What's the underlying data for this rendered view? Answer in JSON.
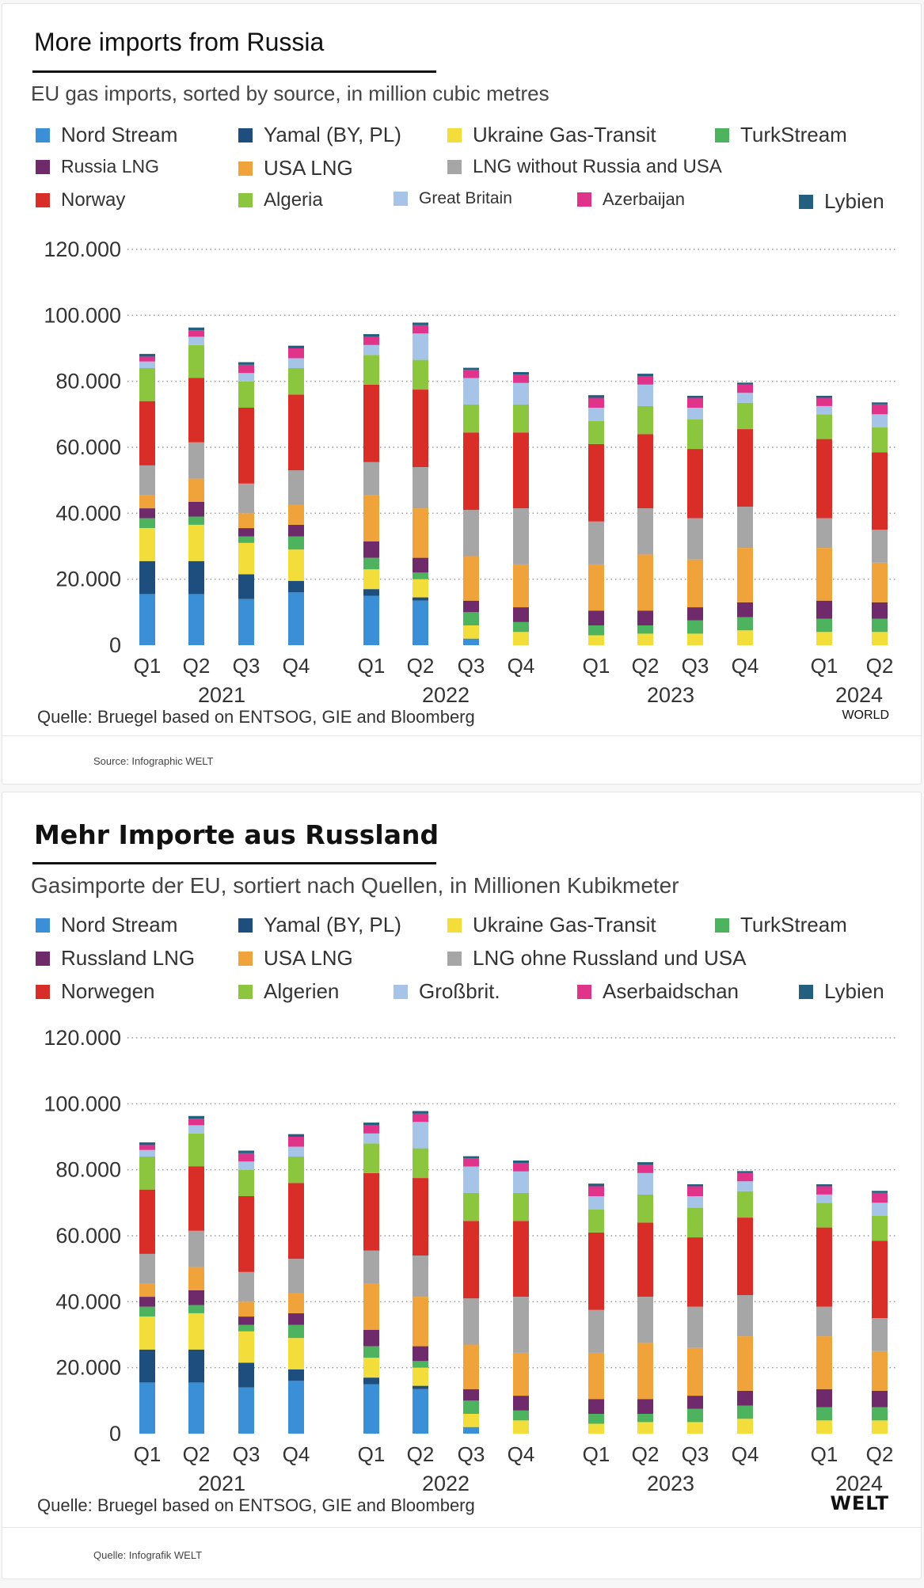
{
  "chart_data": {
    "type": "bar",
    "stacked": true,
    "ylim": [
      0,
      120000
    ],
    "yticks": [
      0,
      20000,
      40000,
      60000,
      80000,
      100000,
      120000
    ],
    "ytick_labels": [
      "0",
      "20.000",
      "40.000",
      "60.000",
      "80.000",
      "100.000",
      "120.000"
    ],
    "grid": "horizontal dotted",
    "categories": [
      "Q1 2021",
      "Q2 2021",
      "Q3 2021",
      "Q4 2021",
      "Q1 2022",
      "Q2 2022",
      "Q3 2022",
      "Q4 2022",
      "Q1 2023",
      "Q2 2023",
      "Q3 2023",
      "Q4 2023",
      "Q1 2024",
      "Q2 2024"
    ],
    "quarter_labels": [
      "Q1",
      "Q2",
      "Q3",
      "Q4",
      "Q1",
      "Q2",
      "Q3",
      "Q4",
      "Q1",
      "Q2",
      "Q3",
      "Q4",
      "Q1",
      "Q2"
    ],
    "years": [
      "2021",
      "2022",
      "2023",
      "2024"
    ],
    "series": [
      {
        "key": "nord_stream",
        "color": "#3a8fd6",
        "values": [
          15500,
          15500,
          14000,
          16000,
          15000,
          13500,
          2000,
          0,
          0,
          0,
          0,
          0,
          0,
          0
        ]
      },
      {
        "key": "yamal",
        "color": "#1e4e7e",
        "values": [
          10000,
          10000,
          7500,
          3500,
          2000,
          1000,
          0,
          0,
          0,
          0,
          0,
          0,
          0,
          0
        ]
      },
      {
        "key": "ukraine",
        "color": "#f2dd3a",
        "values": [
          10000,
          11000,
          9500,
          9500,
          6000,
          5500,
          4000,
          4000,
          3000,
          3500,
          3500,
          4500,
          4000,
          4000
        ]
      },
      {
        "key": "turkstream",
        "color": "#4db35e",
        "values": [
          3000,
          2500,
          2000,
          4000,
          3500,
          2000,
          4000,
          3000,
          3000,
          2500,
          4000,
          4000,
          4000,
          4000
        ]
      },
      {
        "key": "russia_lng",
        "color": "#6e2a6b",
        "values": [
          3000,
          4500,
          2500,
          3500,
          5000,
          4500,
          3500,
          4500,
          4500,
          4500,
          4000,
          4500,
          5500,
          5000
        ]
      },
      {
        "key": "usa_lng",
        "color": "#f0a33a",
        "values": [
          4000,
          7000,
          4500,
          6000,
          14000,
          15000,
          13500,
          13000,
          14000,
          17000,
          14500,
          16500,
          16000,
          12000
        ]
      },
      {
        "key": "lng_other",
        "color": "#a6a6a6",
        "values": [
          9000,
          11000,
          9000,
          10500,
          10000,
          12500,
          14000,
          17000,
          13000,
          14000,
          12500,
          12500,
          9000,
          10000
        ]
      },
      {
        "key": "norway",
        "color": "#d92d27",
        "values": [
          19500,
          19500,
          23000,
          23000,
          23500,
          23500,
          23500,
          23000,
          23500,
          22500,
          21000,
          23500,
          24000,
          23500
        ]
      },
      {
        "key": "algeria",
        "color": "#8cc63f",
        "values": [
          10000,
          10000,
          8000,
          8000,
          9000,
          9000,
          8500,
          8500,
          7000,
          8500,
          9000,
          8000,
          7500,
          7500
        ]
      },
      {
        "key": "great_britain",
        "color": "#a6c4e8",
        "values": [
          2000,
          2500,
          2500,
          3000,
          3000,
          8000,
          8000,
          6500,
          4000,
          6500,
          3500,
          3000,
          2500,
          4000
        ]
      },
      {
        "key": "azerbaijan",
        "color": "#e0338a",
        "values": [
          1500,
          2000,
          2500,
          3000,
          2500,
          2500,
          2500,
          2500,
          3000,
          2500,
          3000,
          2500,
          2500,
          3000
        ]
      },
      {
        "key": "libya",
        "color": "#235f7e",
        "values": [
          800,
          800,
          800,
          800,
          800,
          800,
          600,
          800,
          800,
          800,
          600,
          600,
          600,
          600
        ]
      }
    ],
    "source_shared": "Quelle: Bruegel based on ENTSOG, GIE and Bloomberg"
  },
  "panels": {
    "en": {
      "title": "More imports from Russia",
      "subtitle": "EU gas imports, sorted by source, in million cubic metres",
      "legend": [
        "Nord Stream",
        "Yamal (BY, PL)",
        "Ukraine Gas-Transit",
        "TurkStream",
        "Russia LNG",
        "USA LNG",
        "LNG without Russia and USA",
        "Norway",
        "Algeria",
        "Great Britain",
        "Azerbaijan",
        "Lybien"
      ],
      "source": "Quelle: Bruegel based on ENTSOG, GIE and Bloomberg",
      "brand": "WORLD",
      "footnote": "Source: Infographic WELT"
    },
    "de": {
      "title": "Mehr Importe aus Russland",
      "subtitle": "Gasimporte der EU, sortiert nach Quellen, in Millionen Kubikmeter",
      "legend": [
        "Nord Stream",
        "Yamal (BY, PL)",
        "Ukraine Gas-Transit",
        "TurkStream",
        "Russland LNG",
        "USA LNG",
        "LNG ohne Russland und USA",
        "Norwegen",
        "Algerien",
        "Großbrit.",
        "Aserbaidschan",
        "Lybien"
      ],
      "source": "Quelle: Bruegel based on ENTSOG, GIE and Bloomberg",
      "brand": "WELT",
      "footnote": "Quelle: Infografik WELT"
    }
  }
}
